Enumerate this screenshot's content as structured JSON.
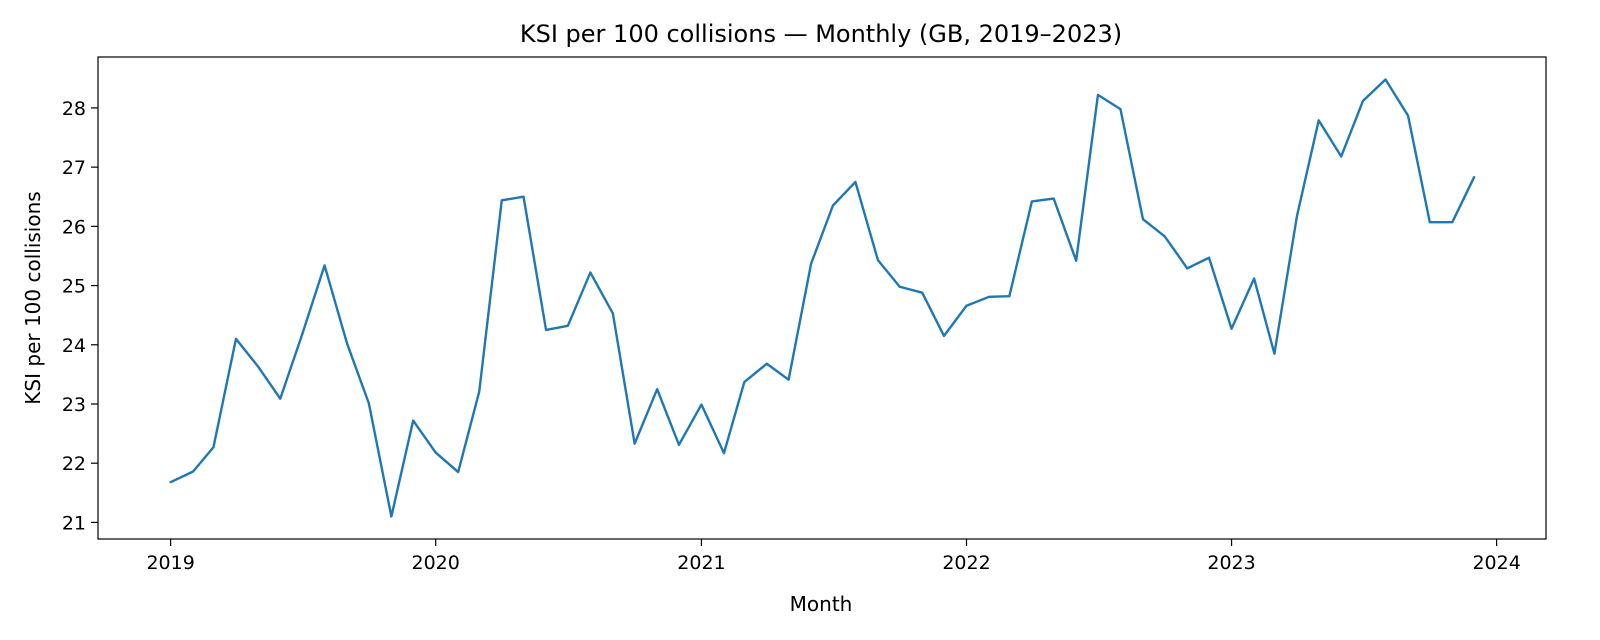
{
  "chart_data": {
    "type": "line",
    "title": "KSI per 100 collisions — Monthly (GB, 2019–2023)",
    "xlabel": "Month",
    "ylabel": "KSI per 100 collisions",
    "xlim": [
      "2018-09-23",
      "2024-03-09"
    ],
    "ylim": [
      20.72,
      28.86
    ],
    "x_ticks": [
      "2019-01-01",
      "2020-01-01",
      "2021-01-01",
      "2022-01-01",
      "2023-01-01",
      "2024-01-01"
    ],
    "x_tick_labels": [
      "2019",
      "2020",
      "2021",
      "2022",
      "2023",
      "2024"
    ],
    "y_ticks": [
      21,
      22,
      23,
      24,
      25,
      26,
      27,
      28
    ],
    "y_tick_labels": [
      "21",
      "22",
      "23",
      "24",
      "25",
      "26",
      "27",
      "28"
    ],
    "grid": false,
    "legend": "none",
    "series": [
      {
        "color": "#1f77b4",
        "x": [
          "2019-01",
          "2019-02",
          "2019-03",
          "2019-04",
          "2019-05",
          "2019-06",
          "2019-07",
          "2019-08",
          "2019-09",
          "2019-10",
          "2019-11",
          "2019-12",
          "2020-01",
          "2020-02",
          "2020-03",
          "2020-04",
          "2020-05",
          "2020-06",
          "2020-07",
          "2020-08",
          "2020-09",
          "2020-10",
          "2020-11",
          "2020-12",
          "2021-01",
          "2021-02",
          "2021-03",
          "2021-04",
          "2021-05",
          "2021-06",
          "2021-07",
          "2021-08",
          "2021-09",
          "2021-10",
          "2021-11",
          "2021-12",
          "2022-01",
          "2022-02",
          "2022-03",
          "2022-04",
          "2022-05",
          "2022-06",
          "2022-07",
          "2022-08",
          "2022-09",
          "2022-10",
          "2022-11",
          "2022-12",
          "2023-01",
          "2023-02",
          "2023-03",
          "2023-04",
          "2023-05",
          "2023-06",
          "2023-07",
          "2023-08",
          "2023-09",
          "2023-10",
          "2023-11",
          "2023-12"
        ],
        "values": [
          21.68,
          21.86,
          22.27,
          24.1,
          23.64,
          23.09,
          24.17,
          25.34,
          24.02,
          23.01,
          21.1,
          22.72,
          22.18,
          21.85,
          23.21,
          26.44,
          26.5,
          24.25,
          24.32,
          25.22,
          24.53,
          22.33,
          23.25,
          22.31,
          22.99,
          22.17,
          23.37,
          23.68,
          23.41,
          25.37,
          26.35,
          26.75,
          25.43,
          24.98,
          24.88,
          24.15,
          24.66,
          24.81,
          24.82,
          26.42,
          26.47,
          25.42,
          28.22,
          27.98,
          26.12,
          25.83,
          25.29,
          25.47,
          24.27,
          25.12,
          23.85,
          26.17,
          27.79,
          27.18,
          28.12,
          28.48,
          27.87,
          26.07,
          26.07,
          26.83
        ]
      }
    ]
  }
}
